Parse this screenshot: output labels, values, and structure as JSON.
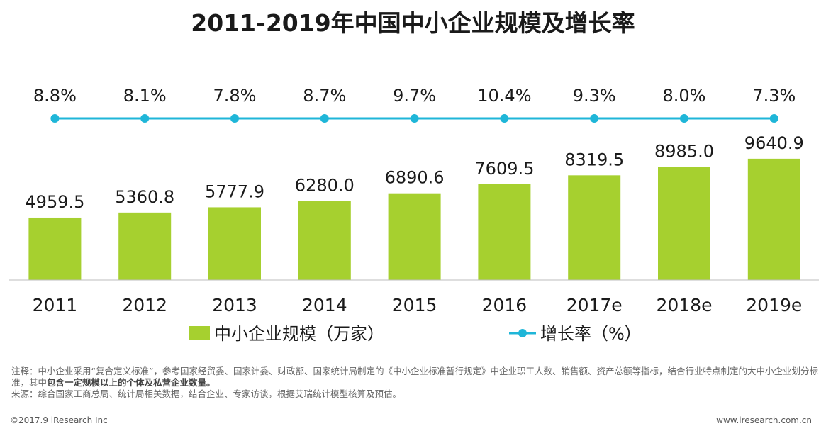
{
  "title": "2011-2019年中国中小企业规模及增长率",
  "colors": {
    "bar": "#a6d02f",
    "line": "#1fb6d8",
    "axis": "#bdbdbd",
    "text": "#1a1a1a"
  },
  "chart_data": {
    "type": "bar+line",
    "title": "2011-2019年中国中小企业规模及增长率",
    "categories": [
      "2011",
      "2012",
      "2013",
      "2014",
      "2015",
      "2016",
      "2017e",
      "2018e",
      "2019e"
    ],
    "series": [
      {
        "name": "中小企业规模（万家）",
        "type": "bar",
        "values": [
          4959.5,
          5360.8,
          5777.9,
          6280.0,
          6890.6,
          7609.5,
          8319.5,
          8985.0,
          9640.9
        ],
        "labels": [
          "4959.5",
          "5360.8",
          "5777.9",
          "6280.0",
          "6890.6",
          "7609.5",
          "8319.5",
          "8985.0",
          "9640.9"
        ]
      },
      {
        "name": "增长率（%）",
        "type": "line",
        "values": [
          8.8,
          8.1,
          7.8,
          8.7,
          9.7,
          10.4,
          9.3,
          8.0,
          7.3
        ],
        "labels": [
          "8.8%",
          "8.1%",
          "7.8%",
          "8.7%",
          "9.7%",
          "10.4%",
          "9.3%",
          "8.0%",
          "7.3%"
        ]
      }
    ],
    "ylim": [
      0,
      10000
    ],
    "legend": [
      {
        "label": "中小企业规模（万家）",
        "kind": "bar"
      },
      {
        "label": "增长率（%）",
        "kind": "line"
      }
    ],
    "legend_position": "bottom-center",
    "grid": false
  },
  "notes": {
    "note_prefix": "注释：中小企业采用“复合定义标准”，参考国家经贸委、国家计委、财政部、国家统计局制定的《中小企业标准暂行规定》中企业职工人数、销售额、资产总额等指标，结合行业特点制定的大中小企业划分标准，其中",
    "note_bold": "包含一定规模以上的个体及私营企业数量。",
    "source": "来源：综合国家工商总局、统计局相关数据，结合企业、专家访谈，根据艾瑞统计模型核算及预估。"
  },
  "footer": {
    "copyright": "©2017.9 iResearch Inc",
    "website": "www.iresearch.com.cn"
  }
}
